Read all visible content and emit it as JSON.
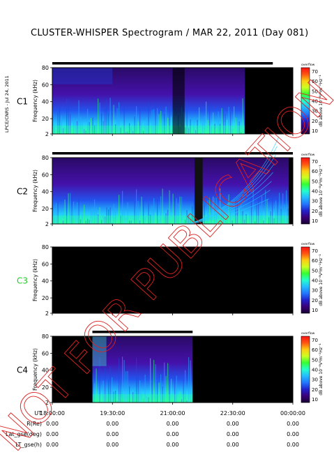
{
  "title": "CLUSTER-WHISPER Spectrogram / MAR 22, 2011 (Day 081)",
  "side_label": "LPCE/CNRS - Jul 24, 2011",
  "watermark": "NOT FOR PUBLICATION",
  "colors": {
    "c3_label": "#22cc22",
    "cmap": [
      "#1a0033",
      "#3a007a",
      "#2222cc",
      "#2277ff",
      "#22bbff",
      "#22ffcc",
      "#33ff33",
      "#ccff22",
      "#ffcc11",
      "#ff5511",
      "#ff1111"
    ],
    "watermark": "#dd2222",
    "no_data": "#000000"
  },
  "chart_data": {
    "type": "heatmap",
    "panels": [
      {
        "name": "C1",
        "ylabel": "Frequency (kHz)",
        "yticks": [
          "80",
          "60",
          "40",
          "20",
          "2"
        ],
        "has_data": true,
        "data_bar": [
          18.0,
          23.5
        ],
        "data_segments": [
          [
            18.0,
            22.8
          ]
        ],
        "colorbar_title": "overflow",
        "colorbar_label": "dB above 10⁻⁸V²m⁻²Hz⁻¹",
        "colorbar_ticks": [
          "70",
          "60",
          "50",
          "40",
          "30",
          "20",
          "10"
        ]
      },
      {
        "name": "C2",
        "ylabel": "Frequency (kHz)",
        "yticks": [
          "80",
          "60",
          "40",
          "20",
          "2"
        ],
        "has_data": true,
        "data_bar": [
          18.0,
          24.0
        ],
        "data_segments": [
          [
            18.0,
            23.9
          ]
        ],
        "colorbar_title": "overflow",
        "colorbar_label": "dB above 10⁻⁸V²m⁻²Hz⁻¹",
        "colorbar_ticks": [
          "70",
          "60",
          "50",
          "40",
          "30",
          "20",
          "10"
        ]
      },
      {
        "name": "C3",
        "ylabel": "Frequency (kHz)",
        "yticks": [
          "80",
          "60",
          "40",
          "20",
          "2"
        ],
        "has_data": false,
        "data_bar": null,
        "data_segments": [],
        "colorbar_title": "overflow",
        "colorbar_label": "dB above 10⁻⁸V²m⁻²Hz⁻¹",
        "colorbar_ticks": [
          "70",
          "60",
          "50",
          "40",
          "30",
          "20",
          "10"
        ]
      },
      {
        "name": "C4",
        "ylabel": "Frequency (kHz)",
        "yticks": [
          "80",
          "60",
          "40",
          "20",
          "2"
        ],
        "has_data": true,
        "data_bar": [
          19.0,
          21.5
        ],
        "data_segments": [
          [
            19.0,
            21.5
          ]
        ],
        "colorbar_title": "overflow",
        "colorbar_label": "dB above 10⁻⁸V²m⁻²Hz⁻¹",
        "colorbar_ticks": [
          "70",
          "60",
          "50",
          "40",
          "30",
          "20",
          "10"
        ]
      }
    ],
    "x_range_hours": [
      18.0,
      24.0
    ],
    "ylim_khz": [
      2,
      80
    ],
    "zlim_db": [
      10,
      70
    ],
    "xticks": [
      {
        "label": "18:00:00",
        "hour": 18.0
      },
      {
        "label": "19:30:00",
        "hour": 19.5
      },
      {
        "label": "21:00:00",
        "hour": 21.0
      },
      {
        "label": "22:30:00",
        "hour": 22.5
      },
      {
        "label": "00:00:00",
        "hour": 24.0
      }
    ]
  },
  "ephemeris": {
    "rows": [
      {
        "label": "UT",
        "values": [
          "18:00:00",
          "19:30:00",
          "21:00:00",
          "22:30:00",
          "00:00:00"
        ]
      },
      {
        "label": "R(Re)",
        "values": [
          "0.00",
          "0.00",
          "0.00",
          "0.00",
          "0.00"
        ]
      },
      {
        "label": "Lat_gse(deg)",
        "values": [
          "0.00",
          "0.00",
          "0.00",
          "0.00",
          "0.00"
        ]
      },
      {
        "label": "LT_gse(h)",
        "values": [
          "0.00",
          "0.00",
          "0.00",
          "0.00",
          "0.00"
        ]
      }
    ]
  }
}
